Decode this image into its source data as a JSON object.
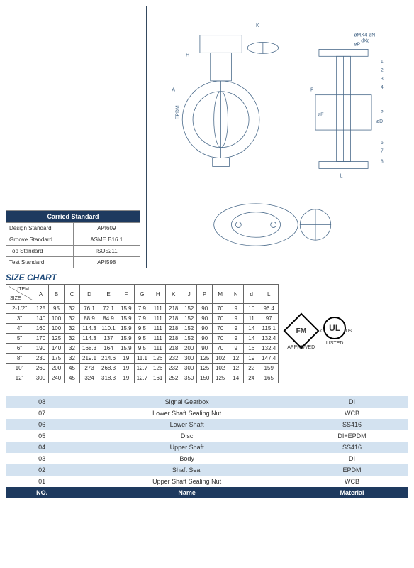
{
  "carried": {
    "title": "Carried Standard",
    "rows": [
      {
        "label": "Design Standard",
        "value": "API609"
      },
      {
        "label": "Groove Standard",
        "value": "ASME B16.1"
      },
      {
        "label": "Top Standard",
        "value": "ISO5211"
      },
      {
        "label": "Test Standard",
        "value": "API598"
      }
    ]
  },
  "sizeChart": {
    "title": "SIZE CHART",
    "cornerTop": "ITEM",
    "cornerBottom": "SIZE",
    "headers": [
      "A",
      "B",
      "C",
      "D",
      "E",
      "F",
      "G",
      "H",
      "K",
      "J",
      "P",
      "M",
      "N",
      "d",
      "L"
    ],
    "rows": [
      {
        "size": "2-1/2\"",
        "v": [
          "125",
          "95",
          "32",
          "76.1",
          "72.1",
          "15.9",
          "7.9",
          "111",
          "218",
          "152",
          "90",
          "70",
          "9",
          "10",
          "96.4"
        ]
      },
      {
        "size": "3\"",
        "v": [
          "140",
          "100",
          "32",
          "88.9",
          "84.9",
          "15.9",
          "7.9",
          "111",
          "218",
          "152",
          "90",
          "70",
          "9",
          "11",
          "97"
        ]
      },
      {
        "size": "4\"",
        "v": [
          "160",
          "100",
          "32",
          "114.3",
          "110.1",
          "15.9",
          "9.5",
          "111",
          "218",
          "152",
          "90",
          "70",
          "9",
          "14",
          "115.1"
        ]
      },
      {
        "size": "5\"",
        "v": [
          "170",
          "125",
          "32",
          "114.3",
          "137",
          "15.9",
          "9.5",
          "111",
          "218",
          "152",
          "90",
          "70",
          "9",
          "14",
          "132.4"
        ]
      },
      {
        "size": "6\"",
        "v": [
          "190",
          "140",
          "32",
          "168.3",
          "164",
          "15.9",
          "9.5",
          "111",
          "218",
          "200",
          "90",
          "70",
          "9",
          "16",
          "132.4"
        ]
      },
      {
        "size": "8\"",
        "v": [
          "230",
          "175",
          "32",
          "219.1",
          "214.6",
          "19",
          "11.1",
          "126",
          "232",
          "300",
          "125",
          "102",
          "12",
          "19",
          "147.4"
        ]
      },
      {
        "size": "10\"",
        "v": [
          "260",
          "200",
          "45",
          "273",
          "268.3",
          "19",
          "12.7",
          "126",
          "232",
          "300",
          "125",
          "102",
          "12",
          "22",
          "159"
        ]
      },
      {
        "size": "12\"",
        "v": [
          "300",
          "240",
          "45",
          "324",
          "318.3",
          "19",
          "12.7",
          "161",
          "252",
          "350",
          "150",
          "125",
          "14",
          "24",
          "165"
        ]
      }
    ]
  },
  "parts": {
    "headers": {
      "no": "NO.",
      "name": "Name",
      "material": "Material"
    },
    "rows": [
      {
        "no": "08",
        "name": "Signal Gearbox",
        "mat": "DI"
      },
      {
        "no": "07",
        "name": "Lower Shaft Sealing Nut",
        "mat": "WCB"
      },
      {
        "no": "06",
        "name": "Lower Shaft",
        "mat": "SS416"
      },
      {
        "no": "05",
        "name": "Disc",
        "mat": "DI+EPDM"
      },
      {
        "no": "04",
        "name": "Upper Shaft",
        "mat": "SS416"
      },
      {
        "no": "03",
        "name": "Body",
        "mat": "DI"
      },
      {
        "no": "02",
        "name": "Shaft Seal",
        "mat": "EPDM"
      },
      {
        "no": "01",
        "name": "Upper Shaft Sealing Nut",
        "mat": "WCB"
      }
    ]
  },
  "badges": {
    "fm": {
      "text": "FM",
      "sub": "APPROVED"
    },
    "ul": {
      "c": "C",
      "ul": "UL",
      "us": "US",
      "sub": "LISTED"
    }
  },
  "diagram": {
    "labels": [
      "EPDM",
      "K",
      "H",
      "A",
      "øE",
      "øD",
      "øP",
      "øMX4-øN",
      "dXd",
      "F",
      "L",
      "1",
      "2",
      "3",
      "4",
      "5",
      "6",
      "7",
      "8"
    ]
  },
  "style": {
    "primary": "#1e3a5f",
    "lightBlue": "#d3e2f0",
    "border": "#666"
  }
}
